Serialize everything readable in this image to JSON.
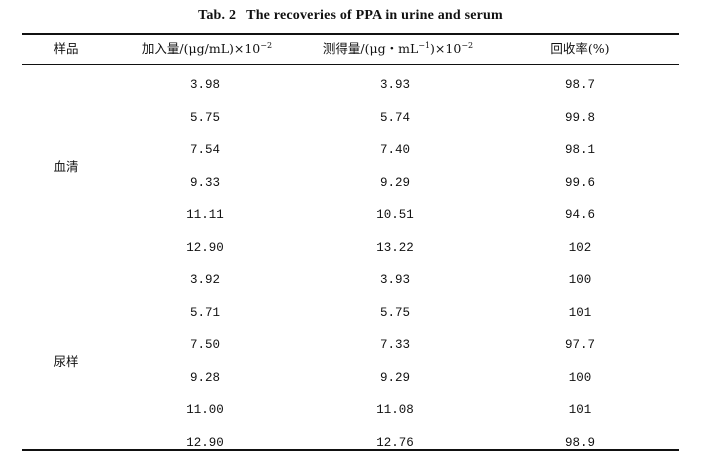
{
  "caption": {
    "number": "Tab. 2",
    "title": "The recoveries of PPA in urine and serum"
  },
  "columns": {
    "sample": "样品",
    "added_main": "加入量/(μg/mL)×10",
    "added_exp": "−2",
    "found_main": "测得量/(μg・mL",
    "found_exp1": "−1",
    "found_mid": ")×10",
    "found_exp2": "−2",
    "recovery": "回收率(%)"
  },
  "groups": [
    {
      "label": "血清",
      "rows": [
        {
          "added": "3.98",
          "found": "3.93",
          "recovery": "98.7"
        },
        {
          "added": "5.75",
          "found": "5.74",
          "recovery": "99.8"
        },
        {
          "added": "7.54",
          "found": "7.40",
          "recovery": "98.1"
        },
        {
          "added": "9.33",
          "found": "9.29",
          "recovery": "99.6"
        },
        {
          "added": "11.11",
          "found": "10.51",
          "recovery": "94.6"
        },
        {
          "added": "12.90",
          "found": "13.22",
          "recovery": "102"
        }
      ]
    },
    {
      "label": "尿样",
      "rows": [
        {
          "added": "3.92",
          "found": "3.93",
          "recovery": "100"
        },
        {
          "added": "5.71",
          "found": "5.75",
          "recovery": "101"
        },
        {
          "added": "7.50",
          "found": "7.33",
          "recovery": "97.7"
        },
        {
          "added": "9.28",
          "found": "9.29",
          "recovery": "100"
        },
        {
          "added": "11.00",
          "found": "11.08",
          "recovery": "101"
        },
        {
          "added": "12.90",
          "found": "12.76",
          "recovery": "98.9"
        }
      ]
    }
  ]
}
